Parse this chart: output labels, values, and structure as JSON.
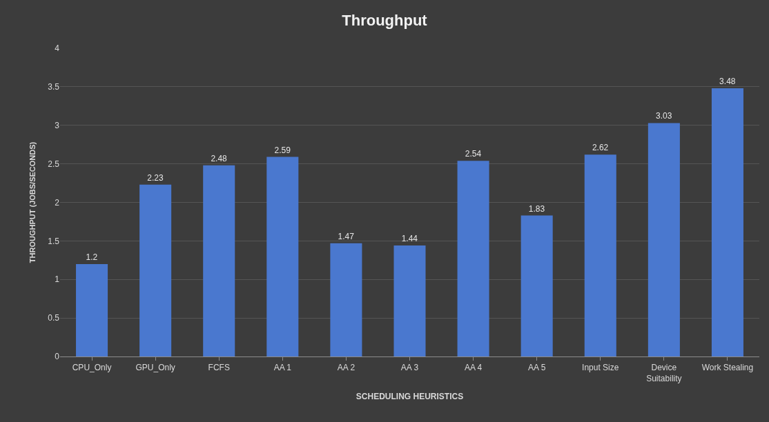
{
  "chart_data": {
    "type": "bar",
    "title": "Throughput",
    "xlabel": "SCHEDULING HEURISTICS",
    "ylabel": "THROUGHPUT (JOBS/SECONDS)",
    "categories": [
      "CPU_Only",
      "GPU_Only",
      "FCFS",
      "AA 1",
      "AA 2",
      "AA 3",
      "AA 4",
      "AA 5",
      "Input Size",
      "Device Suitability",
      "Work Stealing"
    ],
    "values": [
      1.2,
      2.23,
      2.48,
      2.59,
      1.47,
      1.44,
      2.54,
      1.83,
      2.62,
      3.03,
      3.48
    ],
    "color": "#4a78cf",
    "ylim": [
      0,
      4
    ],
    "yticks": [
      0,
      0.5,
      1,
      1.5,
      2,
      2.5,
      3,
      3.5,
      4
    ],
    "grid": "y",
    "data_labels": true,
    "legend": false
  }
}
